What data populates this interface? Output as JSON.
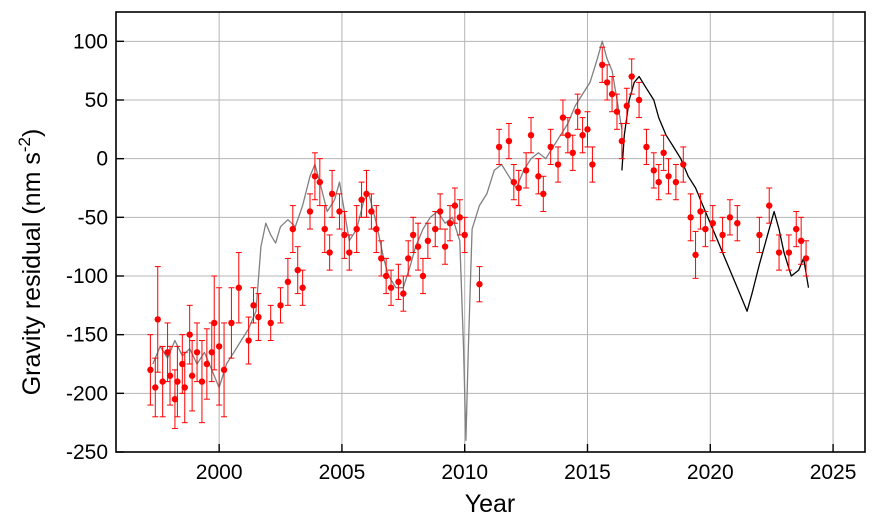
{
  "chart_data": {
    "type": "scatter",
    "title": "",
    "xlabel": "Year",
    "ylabel_main": "Gravity residual (nm s",
    "ylabel_sup": "-2",
    "ylabel_close": ")",
    "xlim": [
      1995.8,
      2026.3
    ],
    "ylim": [
      -250,
      125
    ],
    "xticks": [
      2000,
      2005,
      2010,
      2015,
      2020,
      2025
    ],
    "yticks": [
      -250,
      -200,
      -150,
      -100,
      -50,
      0,
      50,
      100
    ],
    "xtick_labels": [
      "2000",
      "2005",
      "2010",
      "2015",
      "2020",
      "2025"
    ],
    "ytick_labels": [
      "-250",
      "-200",
      "-150",
      "-100",
      "-50",
      "0",
      "50",
      "100"
    ],
    "grid": true,
    "colors": {
      "gray_series": "#808080",
      "black_series": "#000000",
      "red_points": "#ff0000"
    },
    "series": [
      {
        "kind": "line",
        "color": "#808080",
        "points": [
          [
            1997.3,
            -175
          ],
          [
            1997.6,
            -160
          ],
          [
            1997.9,
            -170
          ],
          [
            1998.2,
            -155
          ],
          [
            1998.5,
            -168
          ],
          [
            1998.8,
            -162
          ],
          [
            1999.1,
            -175
          ],
          [
            1999.4,
            -165
          ],
          [
            1999.7,
            -180
          ],
          [
            2000.0,
            -195
          ],
          [
            2000.3,
            -175
          ],
          [
            2000.6,
            -165
          ],
          [
            2000.9,
            -155
          ],
          [
            2001.2,
            -145
          ],
          [
            2001.5,
            -130
          ],
          [
            2001.7,
            -75
          ],
          [
            2001.9,
            -55
          ],
          [
            2002.1,
            -65
          ],
          [
            2002.3,
            -72
          ],
          [
            2002.5,
            -58
          ],
          [
            2002.8,
            -52
          ],
          [
            2003.1,
            -58
          ],
          [
            2003.4,
            -40
          ],
          [
            2003.7,
            -15
          ],
          [
            2003.9,
            -5
          ],
          [
            2004.1,
            -20
          ],
          [
            2004.4,
            -45
          ],
          [
            2004.7,
            -35
          ],
          [
            2004.9,
            -20
          ],
          [
            2005.1,
            -45
          ],
          [
            2005.3,
            -70
          ],
          [
            2005.6,
            -60
          ],
          [
            2005.9,
            -35
          ],
          [
            2006.1,
            -30
          ],
          [
            2006.4,
            -55
          ],
          [
            2006.7,
            -85
          ],
          [
            2006.9,
            -100
          ],
          [
            2007.2,
            -110
          ],
          [
            2007.5,
            -110
          ],
          [
            2007.8,
            -90
          ],
          [
            2008.0,
            -75
          ],
          [
            2008.3,
            -60
          ],
          [
            2008.6,
            -50
          ],
          [
            2008.9,
            -45
          ],
          [
            2009.2,
            -55
          ],
          [
            2009.5,
            -50
          ],
          [
            2009.8,
            -70
          ],
          [
            2009.95,
            -160
          ],
          [
            2010.05,
            -240
          ],
          [
            2010.15,
            -160
          ],
          [
            2010.3,
            -60
          ],
          [
            2010.6,
            -40
          ],
          [
            2010.9,
            -30
          ],
          [
            2011.2,
            -10
          ],
          [
            2011.5,
            -5
          ],
          [
            2011.8,
            -15
          ],
          [
            2012.1,
            -25
          ],
          [
            2012.4,
            -10
          ],
          [
            2012.7,
            0
          ],
          [
            2013.0,
            5
          ],
          [
            2013.3,
            0
          ],
          [
            2013.6,
            10
          ],
          [
            2013.9,
            20
          ],
          [
            2014.2,
            30
          ],
          [
            2014.5,
            45
          ],
          [
            2014.8,
            55
          ],
          [
            2015.1,
            65
          ],
          [
            2015.4,
            85
          ],
          [
            2015.6,
            100
          ],
          [
            2015.8,
            85
          ],
          [
            2016.0,
            75
          ],
          [
            2016.2,
            50
          ],
          [
            2016.4,
            25
          ]
        ]
      },
      {
        "kind": "line",
        "color": "#000000",
        "points": [
          [
            2016.4,
            -10
          ],
          [
            2016.5,
            20
          ],
          [
            2016.7,
            50
          ],
          [
            2016.9,
            65
          ],
          [
            2017.1,
            70
          ],
          [
            2017.4,
            60
          ],
          [
            2017.7,
            50
          ],
          [
            2017.9,
            35
          ],
          [
            2018.2,
            20
          ],
          [
            2018.5,
            10
          ],
          [
            2018.8,
            0
          ],
          [
            2019.1,
            -15
          ],
          [
            2019.4,
            -25
          ],
          [
            2019.7,
            -40
          ],
          [
            2020.0,
            -55
          ],
          [
            2020.3,
            -70
          ],
          [
            2020.6,
            -85
          ],
          [
            2020.9,
            -100
          ],
          [
            2021.2,
            -115
          ],
          [
            2021.5,
            -130
          ],
          [
            2021.7,
            -115
          ],
          [
            2022.0,
            -90
          ],
          [
            2022.2,
            -75
          ],
          [
            2022.4,
            -60
          ],
          [
            2022.6,
            -45
          ],
          [
            2022.8,
            -60
          ],
          [
            2023.0,
            -80
          ],
          [
            2023.3,
            -100
          ],
          [
            2023.6,
            -95
          ],
          [
            2023.8,
            -85
          ],
          [
            2024.0,
            -110
          ]
        ]
      },
      {
        "kind": "errorbar",
        "color": "#ff0000",
        "points": [
          [
            1997.2,
            -180,
            30
          ],
          [
            1997.4,
            -195,
            25
          ],
          [
            1997.5,
            -137,
            45
          ],
          [
            1997.7,
            -190,
            30
          ],
          [
            1997.9,
            -165,
            25
          ],
          [
            1998.0,
            -185,
            25
          ],
          [
            1998.2,
            -205,
            25
          ],
          [
            1998.3,
            -190,
            30
          ],
          [
            1998.5,
            -175,
            25
          ],
          [
            1998.6,
            -195,
            30
          ],
          [
            1998.8,
            -150,
            25
          ],
          [
            1998.9,
            -185,
            30
          ],
          [
            1999.1,
            -165,
            25
          ],
          [
            1999.3,
            -190,
            35
          ],
          [
            1999.5,
            -175,
            30
          ],
          [
            1999.7,
            -165,
            25
          ],
          [
            1999.8,
            -140,
            40
          ],
          [
            2000.0,
            -160,
            50
          ],
          [
            2000.2,
            -180,
            40
          ],
          [
            2000.5,
            -140,
            30
          ],
          [
            2000.8,
            -110,
            30
          ],
          [
            2001.2,
            -155,
            20
          ],
          [
            2001.4,
            -125,
            15
          ],
          [
            2001.6,
            -135,
            20
          ],
          [
            2002.1,
            -140,
            15
          ],
          [
            2002.5,
            -125,
            15
          ],
          [
            2002.8,
            -105,
            20
          ],
          [
            2003.0,
            -60,
            20
          ],
          [
            2003.2,
            -95,
            20
          ],
          [
            2003.4,
            -110,
            15
          ],
          [
            2003.7,
            -45,
            15
          ],
          [
            2003.9,
            -15,
            20
          ],
          [
            2004.1,
            -20,
            20
          ],
          [
            2004.3,
            -60,
            20
          ],
          [
            2004.5,
            -80,
            15
          ],
          [
            2004.6,
            -30,
            20
          ],
          [
            2004.9,
            -45,
            15
          ],
          [
            2005.1,
            -65,
            20
          ],
          [
            2005.3,
            -80,
            15
          ],
          [
            2005.6,
            -60,
            20
          ],
          [
            2005.8,
            -35,
            15
          ],
          [
            2006.0,
            -30,
            20
          ],
          [
            2006.2,
            -45,
            15
          ],
          [
            2006.4,
            -60,
            20
          ],
          [
            2006.6,
            -85,
            15
          ],
          [
            2006.8,
            -100,
            15
          ],
          [
            2007.0,
            -110,
            15
          ],
          [
            2007.3,
            -105,
            15
          ],
          [
            2007.5,
            -115,
            15
          ],
          [
            2007.7,
            -85,
            15
          ],
          [
            2007.9,
            -65,
            15
          ],
          [
            2008.1,
            -75,
            20
          ],
          [
            2008.3,
            -100,
            15
          ],
          [
            2008.5,
            -70,
            15
          ],
          [
            2008.8,
            -60,
            15
          ],
          [
            2009.0,
            -45,
            15
          ],
          [
            2009.2,
            -75,
            15
          ],
          [
            2009.4,
            -55,
            15
          ],
          [
            2009.6,
            -40,
            15
          ],
          [
            2009.8,
            -50,
            15
          ],
          [
            2010.0,
            -65,
            15
          ],
          [
            2010.6,
            -107,
            15
          ],
          [
            2011.4,
            10,
            15
          ],
          [
            2011.8,
            15,
            15
          ],
          [
            2012.0,
            -20,
            15
          ],
          [
            2012.2,
            -25,
            15
          ],
          [
            2012.5,
            -10,
            15
          ],
          [
            2012.7,
            20,
            15
          ],
          [
            2013.0,
            -15,
            15
          ],
          [
            2013.2,
            -30,
            15
          ],
          [
            2013.5,
            10,
            15
          ],
          [
            2013.8,
            -5,
            15
          ],
          [
            2014.0,
            35,
            15
          ],
          [
            2014.2,
            20,
            15
          ],
          [
            2014.4,
            5,
            15
          ],
          [
            2014.6,
            40,
            15
          ],
          [
            2014.8,
            20,
            15
          ],
          [
            2015.0,
            25,
            15
          ],
          [
            2015.2,
            -5,
            15
          ],
          [
            2015.6,
            80,
            15
          ],
          [
            2015.8,
            65,
            15
          ],
          [
            2016.0,
            55,
            15
          ],
          [
            2016.2,
            40,
            15
          ],
          [
            2016.4,
            15,
            15
          ],
          [
            2016.6,
            45,
            15
          ],
          [
            2016.8,
            70,
            15
          ],
          [
            2017.1,
            50,
            15
          ],
          [
            2017.4,
            10,
            15
          ],
          [
            2017.7,
            -10,
            15
          ],
          [
            2017.9,
            -20,
            15
          ],
          [
            2018.1,
            5,
            15
          ],
          [
            2018.3,
            -15,
            15
          ],
          [
            2018.6,
            -20,
            15
          ],
          [
            2018.9,
            -5,
            15
          ],
          [
            2019.2,
            -50,
            20
          ],
          [
            2019.4,
            -82,
            20
          ],
          [
            2019.6,
            -45,
            15
          ],
          [
            2019.8,
            -60,
            15
          ],
          [
            2020.1,
            -55,
            15
          ],
          [
            2020.5,
            -65,
            15
          ],
          [
            2020.8,
            -50,
            15
          ],
          [
            2021.1,
            -55,
            15
          ],
          [
            2022.0,
            -65,
            15
          ],
          [
            2022.4,
            -40,
            15
          ],
          [
            2022.8,
            -80,
            15
          ],
          [
            2023.2,
            -80,
            15
          ],
          [
            2023.5,
            -60,
            15
          ],
          [
            2023.7,
            -70,
            20
          ],
          [
            2023.9,
            -85,
            15
          ]
        ]
      }
    ]
  }
}
